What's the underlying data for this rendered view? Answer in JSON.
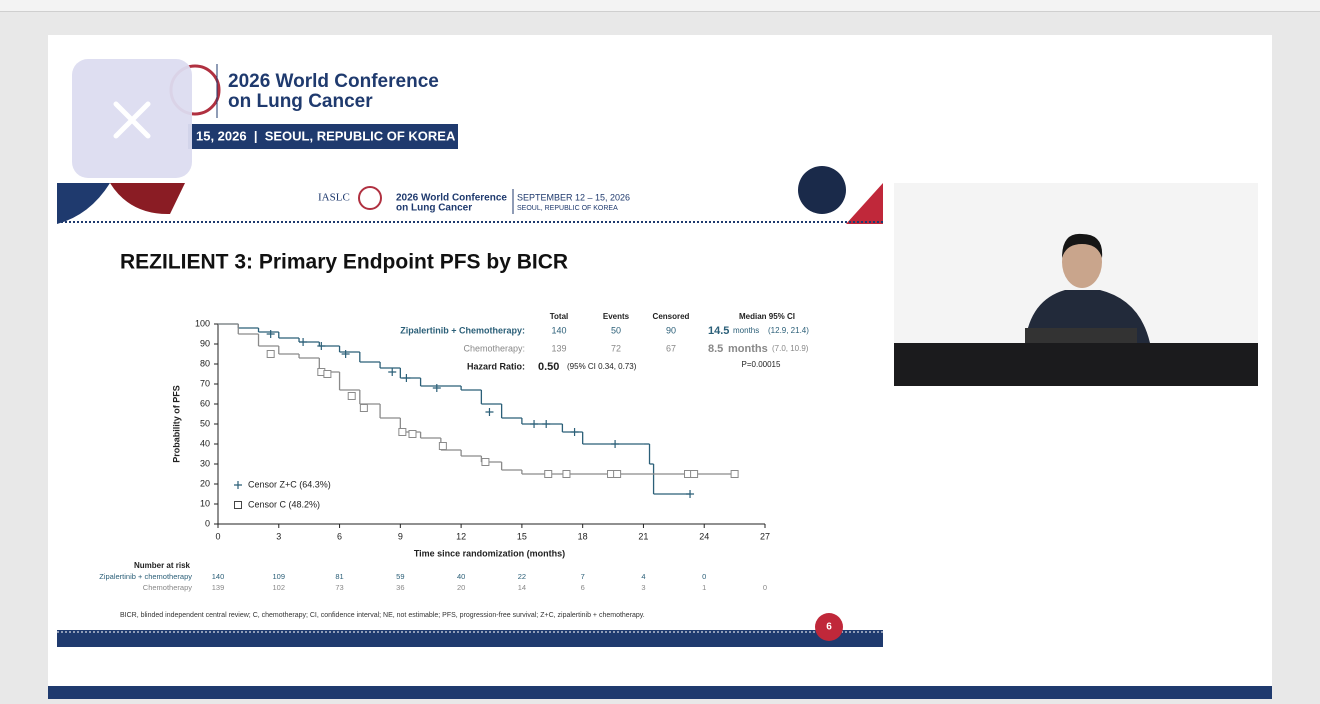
{
  "header": {
    "title_line1": "2026 World Conference",
    "title_line2": "on Lung Cancer",
    "banner": "15, 2026  |  SEOUL, REPUBLIC OF KOREA"
  },
  "slide": {
    "org": "IASLC",
    "conf_line1": "2026 World Conference",
    "conf_line2": "on Lung Cancer",
    "dates": "SEPTEMBER 12 – 15, 2026",
    "place": "SEOUL, REPUBLIC OF KOREA",
    "title": "REZILIENT 3: Primary Endpoint PFS by BICR",
    "stats": {
      "columns": [
        "Total",
        "Events",
        "Censored",
        "Median 95% CI"
      ],
      "rows": [
        {
          "label": "Zipalertinib + Chemotherapy:",
          "total": 140,
          "events": 50,
          "censored": 90,
          "median": "14.5",
          "unit": "months",
          "ci": "(12.9, 21.4)"
        },
        {
          "label": "Chemotherapy:",
          "total": 139,
          "events": 72,
          "censored": 67,
          "median": "8.5",
          "unit": "months",
          "ci": "(7.0, 10.9)"
        }
      ],
      "hazard": {
        "label": "Hazard Ratio:",
        "value": "0.50",
        "ci": "(95% CI 0.34, 0.73)",
        "p": "P=0.00015"
      }
    },
    "risk": {
      "title": "Number at risk",
      "rows": [
        {
          "label": "Zipalertinib + chemotherapy",
          "values": [
            140,
            109,
            81,
            59,
            40,
            22,
            7,
            4,
            0,
            null
          ]
        },
        {
          "label": "Chemotherapy",
          "values": [
            139,
            102,
            73,
            36,
            20,
            14,
            6,
            3,
            1,
            0
          ]
        }
      ]
    },
    "footnote": "BICR, blinded independent central review; C, chemotherapy; CI, confidence interval; NE, not estimable; PFS, progression-free survival; Z+C, zipalertinib + chemotherapy.",
    "page_number": "6"
  },
  "chart_data": {
    "type": "km",
    "x_label": "Time since randomization (months)",
    "y_label": "Probability of PFS",
    "xlim": [
      0,
      27
    ],
    "ylim": [
      0,
      100
    ],
    "xticks": [
      0,
      3,
      6,
      9,
      12,
      15,
      18,
      21,
      24,
      27
    ],
    "yticks": [
      0,
      10,
      20,
      30,
      40,
      50,
      60,
      70,
      80,
      90,
      100
    ],
    "series": [
      {
        "name": "Censor Z+C (64.3%)",
        "color": "#2b5f78",
        "marker": "plus",
        "x": [
          0,
          1,
          2,
          3,
          4,
          5,
          6,
          7,
          8,
          9,
          10,
          12,
          13,
          14,
          15,
          17,
          18,
          21,
          21.3,
          21.5,
          23.3
        ],
        "values": [
          100,
          98,
          96,
          93,
          91,
          89,
          86,
          81,
          78,
          73,
          69,
          67,
          60,
          53,
          50,
          46,
          40,
          40,
          30,
          15,
          15
        ],
        "censor_x": [
          2.6,
          4.2,
          5.1,
          6.3,
          8.6,
          9.3,
          10.8,
          13.4,
          15.6,
          16.2,
          17.6,
          19.6,
          23.3
        ],
        "censor_y": [
          95,
          91,
          89,
          85,
          76,
          73,
          68,
          56,
          50,
          50,
          46,
          40,
          15
        ]
      },
      {
        "name": "Censor C (48.2%)",
        "color": "#8a8a8a",
        "marker": "square",
        "x": [
          0,
          1,
          2,
          3,
          4,
          5,
          6,
          7,
          8,
          9,
          10,
          11,
          12,
          13,
          14,
          15,
          25.5
        ],
        "values": [
          100,
          95,
          89,
          85,
          83,
          76,
          67,
          60,
          53,
          46,
          43,
          37,
          34,
          31,
          27,
          25,
          25
        ],
        "censor_x": [
          2.6,
          5.1,
          5.4,
          6.6,
          7.2,
          9.1,
          9.6,
          11.1,
          13.2,
          16.3,
          17.2,
          19.4,
          19.7,
          23.2,
          23.5,
          25.5
        ],
        "censor_y": [
          85,
          76,
          75,
          64,
          58,
          46,
          45,
          39,
          31,
          25,
          25,
          25,
          25,
          25,
          25,
          25
        ]
      }
    ]
  }
}
